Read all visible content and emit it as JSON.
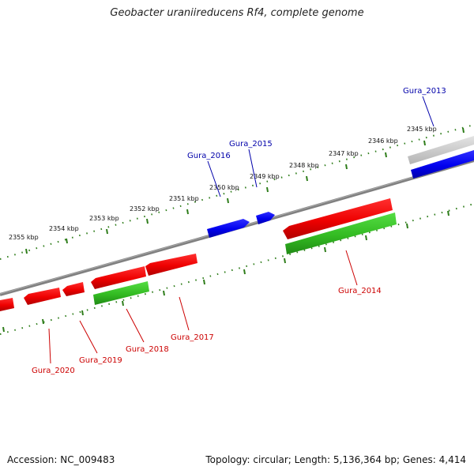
{
  "title": "Geobacter uraniireducens Rf4, complete genome",
  "footer": {
    "accession": "Accession: NC_009483",
    "summary": "Topology: circular; Length: 5,136,364 bp; Genes: 4,414"
  },
  "colors": {
    "backbone": "#808080",
    "tick": "#2e7d1a",
    "forward_gene": "#0000ee",
    "reverse_gene": "#ee0000",
    "rna_gene": "#33bb22",
    "reverse_label": "#cc0000",
    "forward_label": "#0000aa",
    "shadow_gene": "#cccccc"
  },
  "ruler_labels": [
    "2345 kbp",
    "2346 kbp",
    "2347 kbp",
    "2348 kbp",
    "2349 kbp",
    "2350 kbp",
    "2351 kbp",
    "2352 kbp",
    "2353 kbp",
    "2354 kbp",
    "2355 kbp"
  ],
  "forward_genes": [
    {
      "name": "Gura_2013"
    },
    {
      "name": "Gura_2015"
    },
    {
      "name": "Gura_2016"
    }
  ],
  "reverse_genes": [
    {
      "name": "Gura_2014"
    },
    {
      "name": "Gura_2017"
    },
    {
      "name": "Gura_2018"
    },
    {
      "name": "Gura_2019"
    },
    {
      "name": "Gura_2020"
    }
  ]
}
